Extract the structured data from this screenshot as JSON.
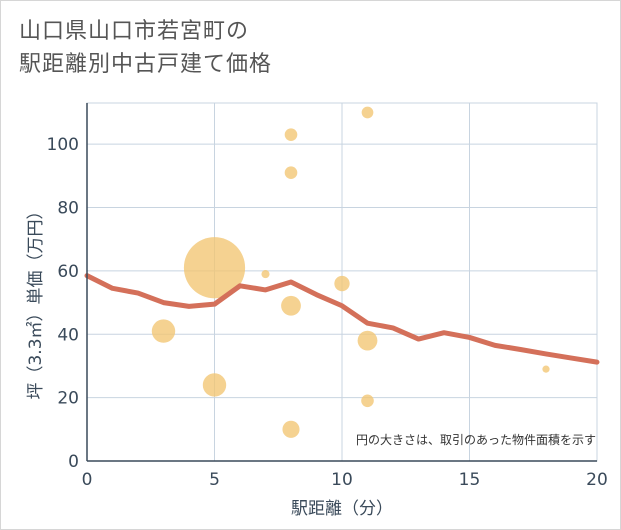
{
  "title_lines": [
    "山口県山口市若宮町の",
    "駅距離別中古戸建て価格"
  ],
  "chart_data": {
    "type": "scatter",
    "title": "山口県山口市若宮町の駅距離別中古戸建て価格",
    "xlabel": "駅距離（分）",
    "ylabel": "坪（3.3㎡）単価（万円）",
    "xlim": [
      0,
      20
    ],
    "ylim": [
      0,
      113
    ],
    "xticks": [
      0,
      5,
      10,
      15,
      20
    ],
    "yticks": [
      0,
      20,
      40,
      60,
      80,
      100
    ],
    "grid": true,
    "annotation": "円の大きさは、取引のあった物件面積を示す",
    "colors": {
      "bubble": "#f2c572",
      "line": "#d4705a",
      "grid": "#c8d4e0",
      "axis": "#3a4a5a"
    },
    "bubbles": [
      {
        "x": 3,
        "y": 41,
        "size": 1.3
      },
      {
        "x": 5,
        "y": 61,
        "size": 3.4
      },
      {
        "x": 5,
        "y": 24,
        "size": 1.3
      },
      {
        "x": 7,
        "y": 59,
        "size": 0.45
      },
      {
        "x": 8,
        "y": 103,
        "size": 0.7
      },
      {
        "x": 8,
        "y": 91,
        "size": 0.7
      },
      {
        "x": 8,
        "y": 49,
        "size": 1.1
      },
      {
        "x": 8,
        "y": 10,
        "size": 0.95
      },
      {
        "x": 10,
        "y": 56,
        "size": 0.85
      },
      {
        "x": 11,
        "y": 110,
        "size": 0.65
      },
      {
        "x": 11,
        "y": 38,
        "size": 1.1
      },
      {
        "x": 11,
        "y": 19,
        "size": 0.7
      },
      {
        "x": 18,
        "y": 29,
        "size": 0.4
      }
    ],
    "trend_line": {
      "x": [
        0,
        1,
        2,
        3,
        4,
        5,
        6,
        7,
        8,
        9,
        10,
        11,
        12,
        13,
        14,
        15,
        16,
        17,
        18,
        19,
        20
      ],
      "y": [
        58.5,
        54.5,
        53,
        50,
        48.8,
        49.5,
        55.3,
        54,
        56.5,
        52.5,
        49,
        43.5,
        42,
        38.5,
        40.5,
        39,
        36.5,
        35.2,
        33.8,
        32.5,
        31.2
      ]
    }
  }
}
